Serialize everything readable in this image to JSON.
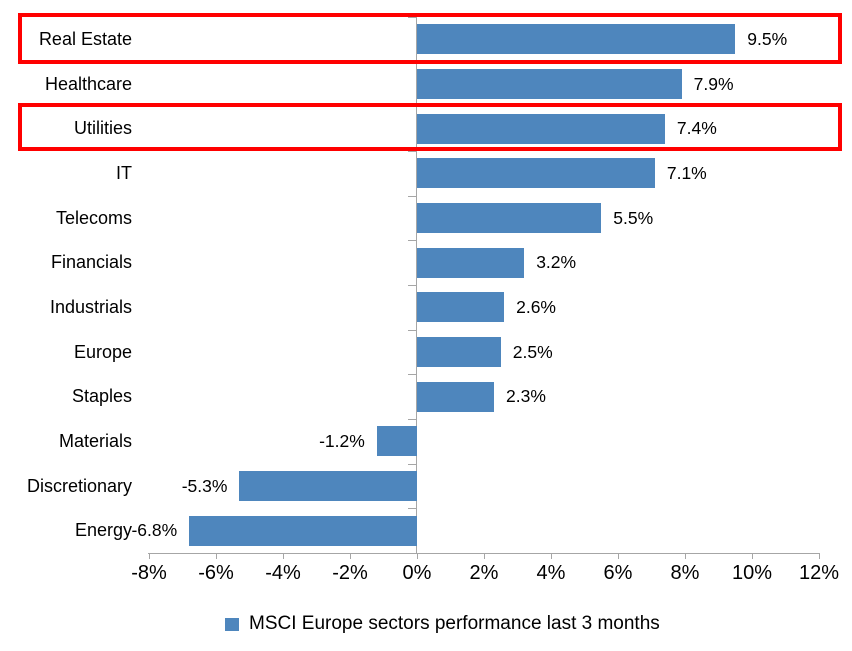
{
  "chart_data": {
    "type": "bar",
    "orientation": "horizontal",
    "title": "",
    "categories": [
      "Real Estate",
      "Healthcare",
      "Utilities",
      "IT",
      "Telecoms",
      "Financials",
      "Industrials",
      "Europe",
      "Staples",
      "Materials",
      "Discretionary",
      "Energy"
    ],
    "values": [
      9.5,
      7.9,
      7.4,
      7.1,
      5.5,
      3.2,
      2.6,
      2.5,
      2.3,
      -1.2,
      -5.3,
      -6.8
    ],
    "data_labels": [
      "9.5%",
      "7.9%",
      "7.4%",
      "7.1%",
      "5.5%",
      "3.2%",
      "2.6%",
      "2.5%",
      "2.3%",
      "-1.2%",
      "-5.3%",
      "-6.8%"
    ],
    "xlabel": "",
    "ylabel": "",
    "xlim": [
      -8,
      12
    ],
    "x_tick_values": [
      -8,
      -6,
      -4,
      -2,
      0,
      2,
      4,
      6,
      8,
      10,
      12
    ],
    "x_tick_labels": [
      "-8%",
      "-6%",
      "-4%",
      "-2%",
      "0%",
      "2%",
      "4%",
      "6%",
      "8%",
      "10%",
      "12%"
    ],
    "grid": false,
    "legend": {
      "label": "MSCI Europe sectors performance last 3 months",
      "position": "bottom"
    },
    "colors": {
      "bar": "#4E86BD",
      "axis": "#A6A6A6",
      "text": "#000000",
      "highlight": "#FF0000",
      "background": "#FFFFFF"
    },
    "highlights": {
      "note": "red outline boxes drawn around these category rows",
      "indices": [
        0,
        2
      ],
      "categories": [
        "Real Estate",
        "Utilities"
      ]
    }
  }
}
